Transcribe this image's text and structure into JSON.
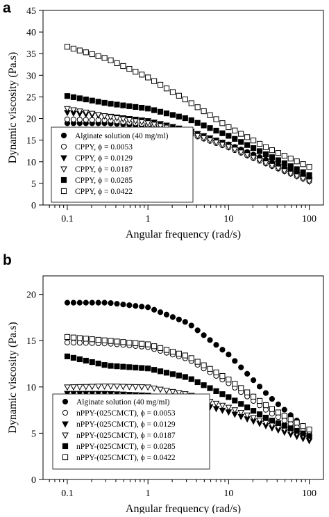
{
  "chart_data": [
    {
      "panel": "a",
      "type": "scatter",
      "xlabel": "Angular frequency (rad/s)",
      "ylabel": "Dynamic viscosity (Pa.s)",
      "xscale": "log",
      "xlim": [
        0.05,
        150
      ],
      "ylim": [
        0,
        45
      ],
      "xticks": [
        0.1,
        1,
        10,
        100
      ],
      "xtick_labels": [
        "0.1",
        "1",
        "10",
        "100"
      ],
      "yticks": [
        0,
        5,
        10,
        15,
        20,
        25,
        30,
        35,
        40,
        45
      ],
      "ytick_labels": [
        "0",
        "5",
        "10",
        "15",
        "20",
        "25",
        "30",
        "35",
        "40",
        "45"
      ],
      "grid": false,
      "legend_position": "bottom-left",
      "series": [
        {
          "name": "Alginate solution (40 mg/ml)",
          "marker": "filled-circle",
          "x": [
            0.1,
            0.316,
            1,
            3.16,
            10,
            31.6,
            100
          ],
          "y": [
            18.9,
            18.9,
            18.3,
            16.8,
            14.0,
            10.2,
            6.2
          ]
        },
        {
          "name": "CPPY, ϕ = 0.0053",
          "marker": "open-circle",
          "x": [
            0.1,
            0.316,
            1,
            3.16,
            10,
            31.6,
            100
          ],
          "y": [
            19.8,
            19.6,
            18.6,
            16.6,
            13.3,
            9.3,
            5.5
          ]
        },
        {
          "name": "CPPY, ϕ = 0.0129",
          "marker": "filled-triangle-down",
          "x": [
            0.1,
            0.316,
            1,
            3.16,
            10,
            31.6,
            100
          ],
          "y": [
            21.4,
            20.6,
            19.5,
            17.3,
            14.0,
            9.8,
            5.8
          ]
        },
        {
          "name": "CPPY, ϕ = 0.0187",
          "marker": "open-triangle-down",
          "x": [
            0.1,
            0.316,
            1,
            3.16,
            10,
            31.6,
            100
          ],
          "y": [
            22.3,
            20.5,
            19.0,
            16.8,
            13.5,
            9.4,
            5.5
          ]
        },
        {
          "name": "CPPY, ϕ = 0.0285",
          "marker": "filled-square",
          "x": [
            0.1,
            0.316,
            1,
            3.16,
            10,
            31.6,
            100
          ],
          "y": [
            25.2,
            23.5,
            22.3,
            19.9,
            16.0,
            11.4,
            6.9
          ]
        },
        {
          "name": "CPPY, ϕ = 0.0422",
          "marker": "open-square",
          "x": [
            0.1,
            0.316,
            1,
            3.16,
            10,
            31.6,
            100
          ],
          "y": [
            36.6,
            33.8,
            29.5,
            24.0,
            18.0,
            13.0,
            8.8
          ]
        }
      ]
    },
    {
      "panel": "b",
      "type": "scatter",
      "xlabel": "Angular frequency (rad/s)",
      "ylabel": "Dynamic viscosity (Pa.s)",
      "xscale": "log",
      "xlim": [
        0.05,
        150
      ],
      "ylim": [
        0,
        22
      ],
      "xticks": [
        0.1,
        1,
        10,
        100
      ],
      "xtick_labels": [
        "0.1",
        "1",
        "10",
        "100"
      ],
      "yticks": [
        0,
        5,
        10,
        15,
        20
      ],
      "ytick_labels": [
        "0",
        "5",
        "10",
        "15",
        "20"
      ],
      "grid": false,
      "legend_position": "bottom-left",
      "series": [
        {
          "name": "Alginate solution (40 mg/ml)",
          "marker": "filled-circle",
          "x": [
            0.1,
            0.316,
            1,
            3.16,
            10,
            31.6,
            100
          ],
          "y": [
            19.1,
            19.1,
            18.6,
            16.9,
            13.5,
            9.0,
            5.2
          ]
        },
        {
          "name": "nPPY-(025CMCT), ϕ = 0.0053",
          "marker": "open-circle",
          "x": [
            0.1,
            0.316,
            1,
            3.16,
            10,
            31.6,
            100
          ],
          "y": [
            14.8,
            14.7,
            14.3,
            13.0,
            10.4,
            7.3,
            4.9
          ]
        },
        {
          "name": "nPPY-(025CMCT), ϕ = 0.0129",
          "marker": "filled-triangle-down",
          "x": [
            0.1,
            0.316,
            1,
            3.16,
            10,
            31.6,
            100
          ],
          "y": [
            9.3,
            9.3,
            9.1,
            8.5,
            7.3,
            5.7,
            4.2
          ]
        },
        {
          "name": "nPPY-(025CMCT), ϕ = 0.0187",
          "marker": "open-triangle-down",
          "x": [
            0.1,
            0.316,
            1,
            3.16,
            10,
            31.6,
            100
          ],
          "y": [
            10.0,
            10.1,
            10.0,
            9.2,
            7.8,
            6.0,
            4.5
          ]
        },
        {
          "name": "nPPY-(025CMCT), ϕ = 0.0285",
          "marker": "filled-square",
          "x": [
            0.1,
            0.316,
            1,
            3.16,
            10,
            31.6,
            100
          ],
          "y": [
            13.3,
            12.3,
            12.0,
            11.0,
            8.9,
            6.5,
            4.7
          ]
        },
        {
          "name": "nPPY-(025CMCT), ϕ = 0.0422",
          "marker": "open-square",
          "x": [
            0.1,
            0.316,
            1,
            3.16,
            10,
            31.6,
            100
          ],
          "y": [
            15.4,
            15.0,
            14.6,
            13.3,
            10.8,
            7.8,
            5.4
          ]
        }
      ]
    }
  ]
}
